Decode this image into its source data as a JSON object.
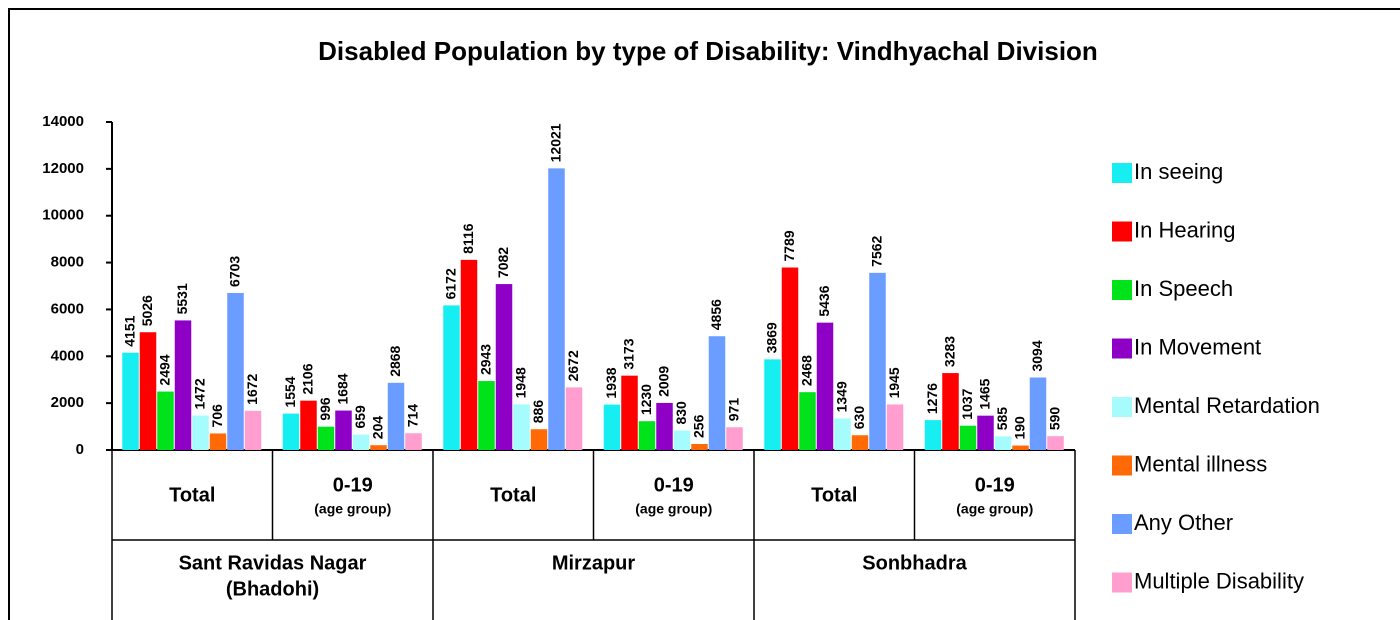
{
  "chart_data": {
    "type": "bar",
    "title": "Disabled Population by type of Disability: Vindhyachal Division",
    "categories": [
      "Total",
      "0-19",
      "Total",
      "0-19",
      "Total",
      "0-19"
    ],
    "category_sublabels": [
      null,
      "(age group)",
      null,
      "(age group)",
      null,
      "(age group)"
    ],
    "groups": [
      [
        "Sant Ravidas Nagar",
        "(Bhadohi)"
      ],
      [
        "Mirzapur"
      ],
      [
        "Sonbhadra"
      ]
    ],
    "series": [
      {
        "name": "In seeing",
        "color": "#17eef2",
        "values": [
          4151,
          1554,
          6172,
          1938,
          3869,
          1276
        ]
      },
      {
        "name": "In Hearing",
        "color": "#ff0000",
        "values": [
          5026,
          2106,
          8116,
          3173,
          7789,
          3283
        ]
      },
      {
        "name": "In Speech",
        "color": "#00e31a",
        "values": [
          2494,
          996,
          2943,
          1230,
          2468,
          1037
        ]
      },
      {
        "name": "In Movement",
        "color": "#8e00c6",
        "values": [
          5531,
          1684,
          7082,
          2009,
          5436,
          1465
        ]
      },
      {
        "name": "Mental Retardation",
        "color": "#a6fcfc",
        "values": [
          1472,
          659,
          1948,
          830,
          1349,
          585
        ]
      },
      {
        "name": "Mental illness",
        "color": "#ff6a06",
        "values": [
          706,
          204,
          886,
          256,
          630,
          190
        ]
      },
      {
        "name": "Any Other",
        "color": "#6b9cff",
        "values": [
          6703,
          2868,
          12021,
          4856,
          7562,
          3094
        ]
      },
      {
        "name": "Multiple Disability",
        "color": "#ff9ecf",
        "values": [
          1672,
          714,
          2672,
          971,
          1945,
          590
        ]
      }
    ],
    "ylim": [
      0,
      14000
    ],
    "yticks": [
      0,
      2000,
      4000,
      6000,
      8000,
      10000,
      12000,
      14000
    ],
    "legend": "right"
  }
}
